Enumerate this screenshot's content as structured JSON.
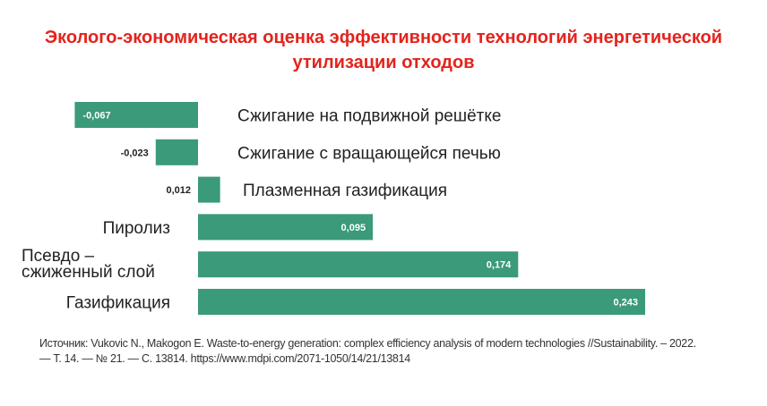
{
  "title_lines": [
    "Эколого-экономическая оценка эффективности технологий энергетической",
    "утилизации отходов"
  ],
  "chart_data": {
    "type": "bar",
    "orientation": "horizontal",
    "title": "Эколого-экономическая оценка эффективности технологий энергетической утилизации отходов",
    "categories": [
      [
        "Сжигание на подвижной решётке"
      ],
      [
        "Сжигание с вращающейся печью"
      ],
      [
        "Плазменная газификация"
      ],
      [
        "Пиролиз"
      ],
      [
        "Псевдо –",
        "сжиженный слой"
      ],
      [
        "Газификация"
      ]
    ],
    "values": [
      -0.067,
      -0.023,
      0.012,
      0.095,
      0.174,
      0.243
    ],
    "value_labels": [
      "-0,067",
      "-0,023",
      "0,012",
      "0,095",
      "0,174",
      "0,243"
    ],
    "xlim": [
      -0.067,
      0.243
    ],
    "grid": false,
    "legend": "none",
    "color": "#3a9a7a"
  },
  "source": {
    "line1": "Источник: Vukovic N., Makogon E. Waste-to-energy generation: complex efficiency analysis of modern technologies //Sustainability. – 2022.",
    "line2": "— Т. 14. — № 21. — С. 13814. https://www.mdpi.com/2071-1050/14/21/13814"
  }
}
